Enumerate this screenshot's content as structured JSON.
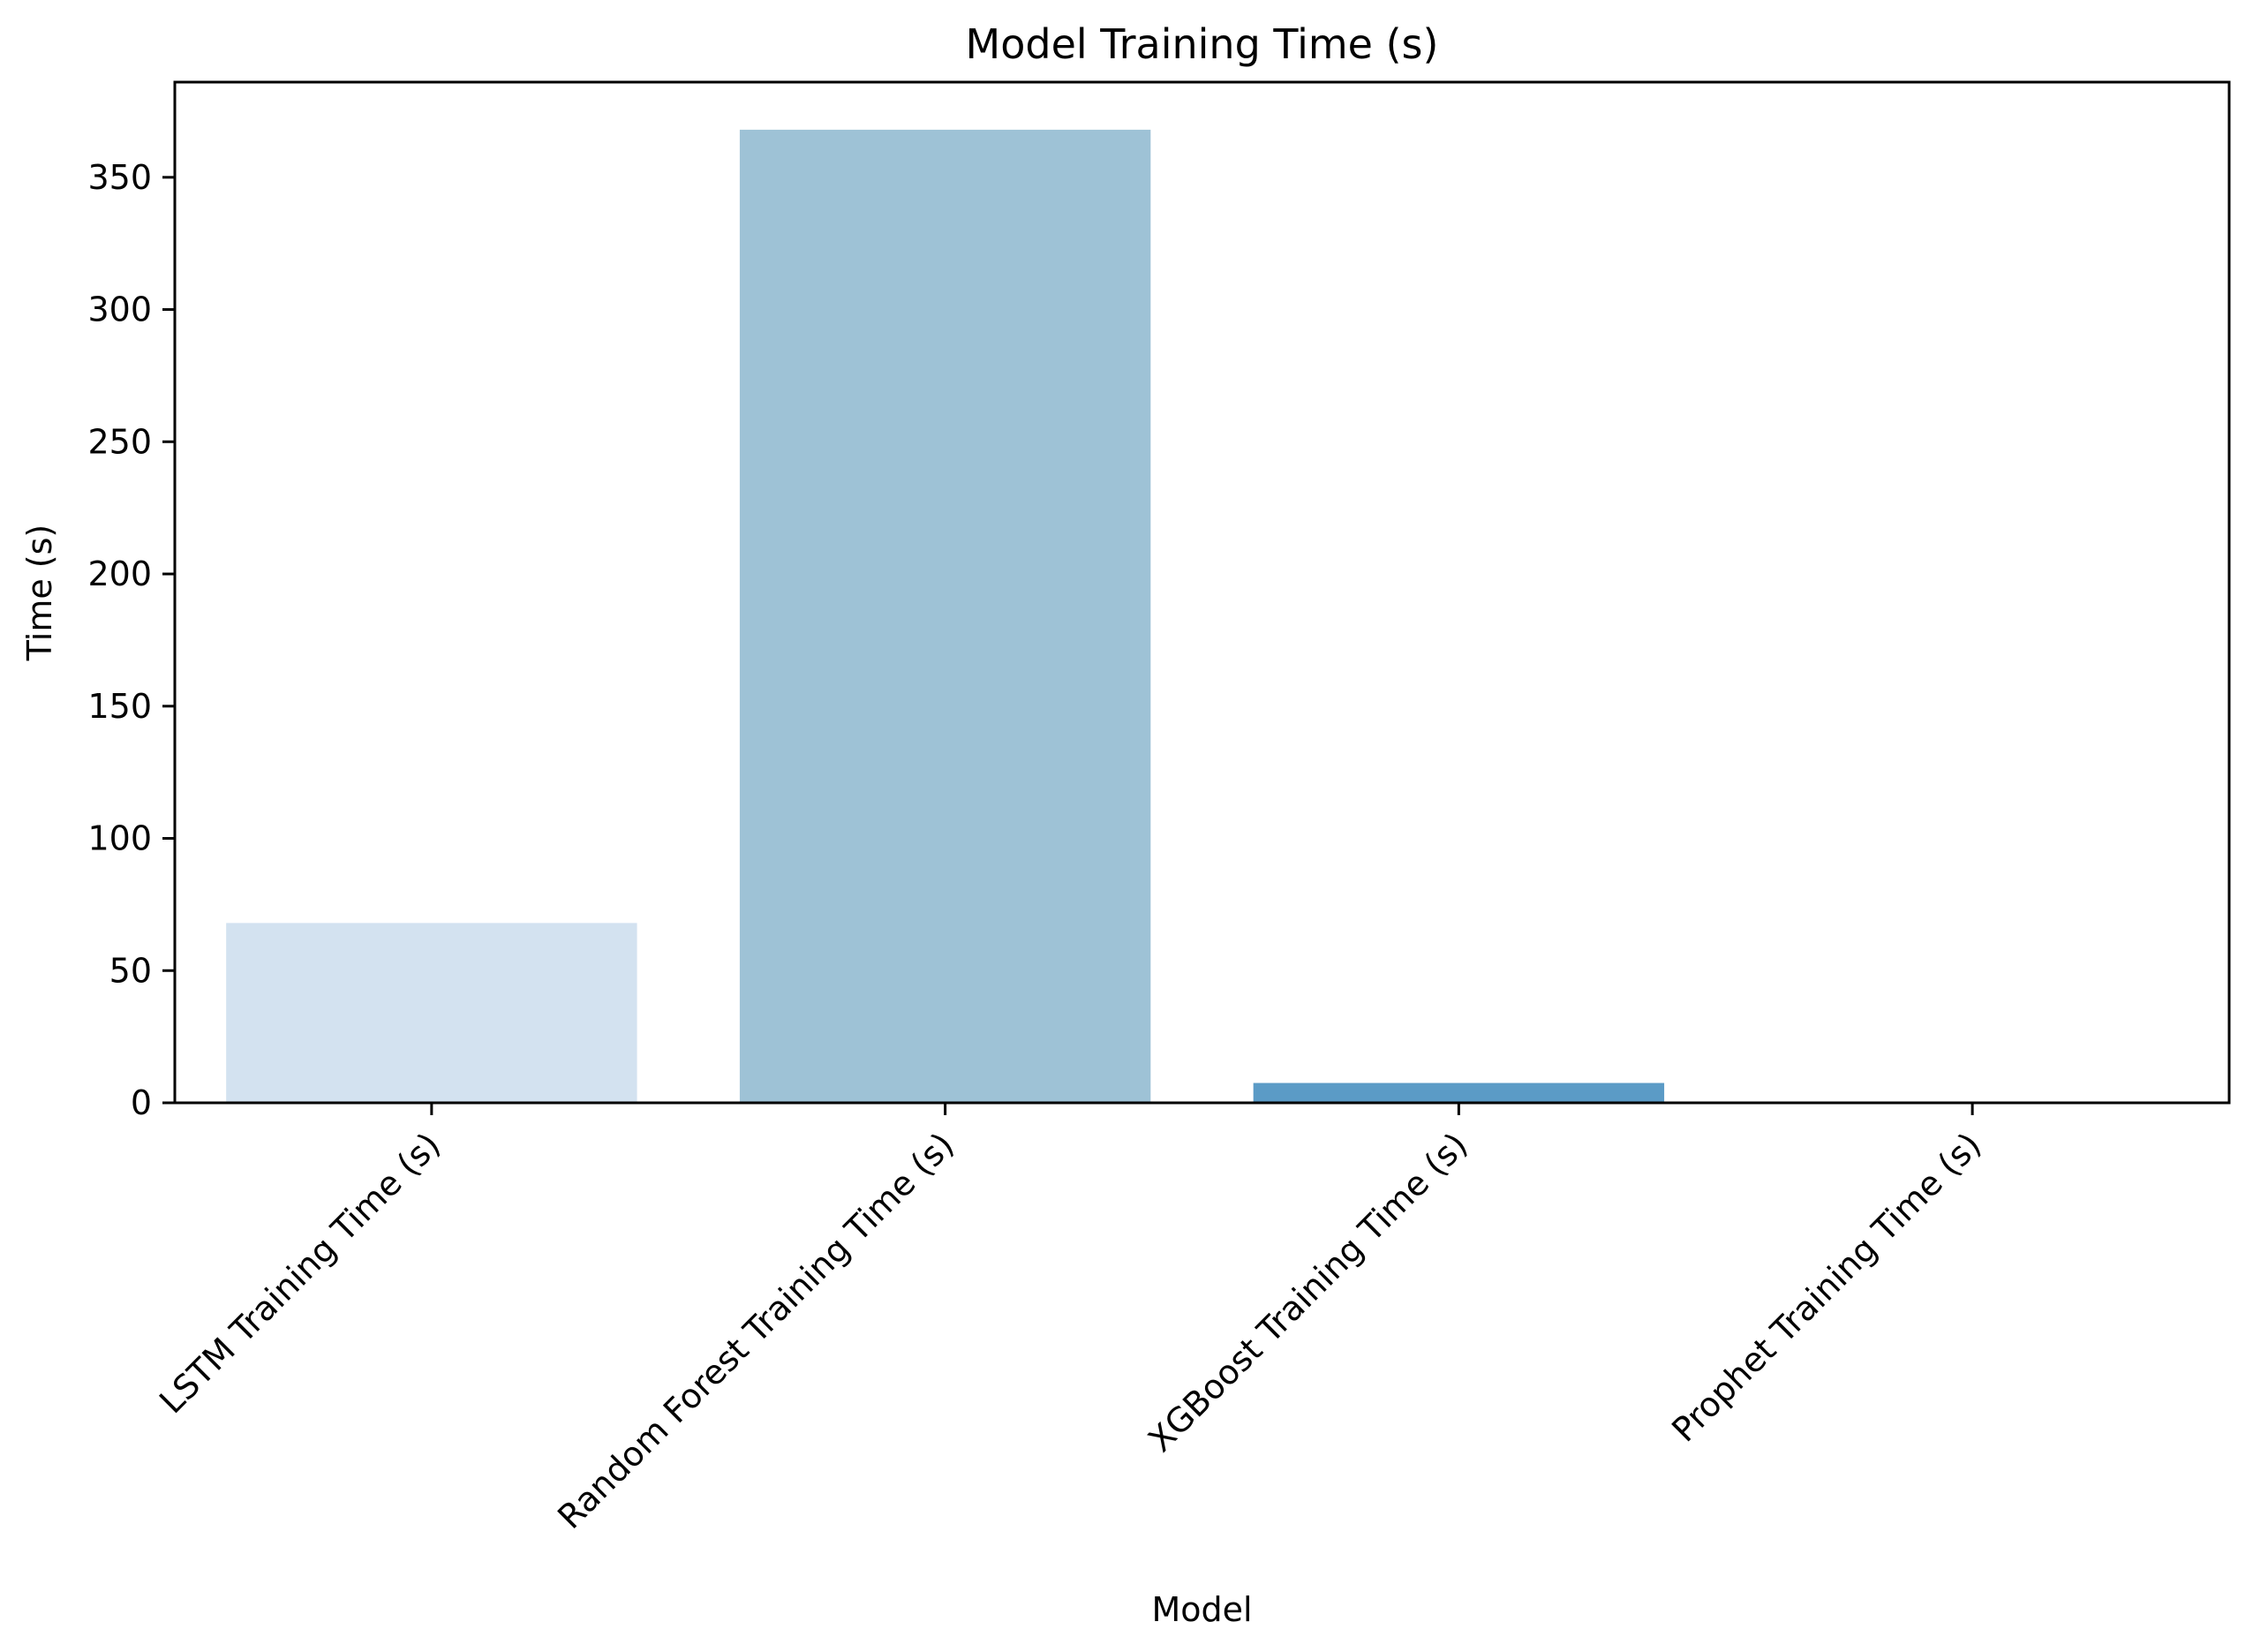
{
  "chart_data": {
    "type": "bar",
    "title": "Model Training Time (s)",
    "xlabel": "Model",
    "ylabel": "Time (s)",
    "categories": [
      "LSTM Training Time (s)",
      "Random Forest Training Time (s)",
      "XGBoost Training Time (s)",
      "Prophet Training Time (s)"
    ],
    "values": [
      68,
      368,
      7.5,
      0.5
    ],
    "colors": [
      "#d3e2f0",
      "#9ec2d6",
      "#5b9bc6",
      "#3a7ab0"
    ],
    "ylim": [
      0,
      386
    ],
    "yticks": [
      0,
      50,
      100,
      150,
      200,
      250,
      300,
      350
    ],
    "grid": false,
    "legend": "none"
  }
}
